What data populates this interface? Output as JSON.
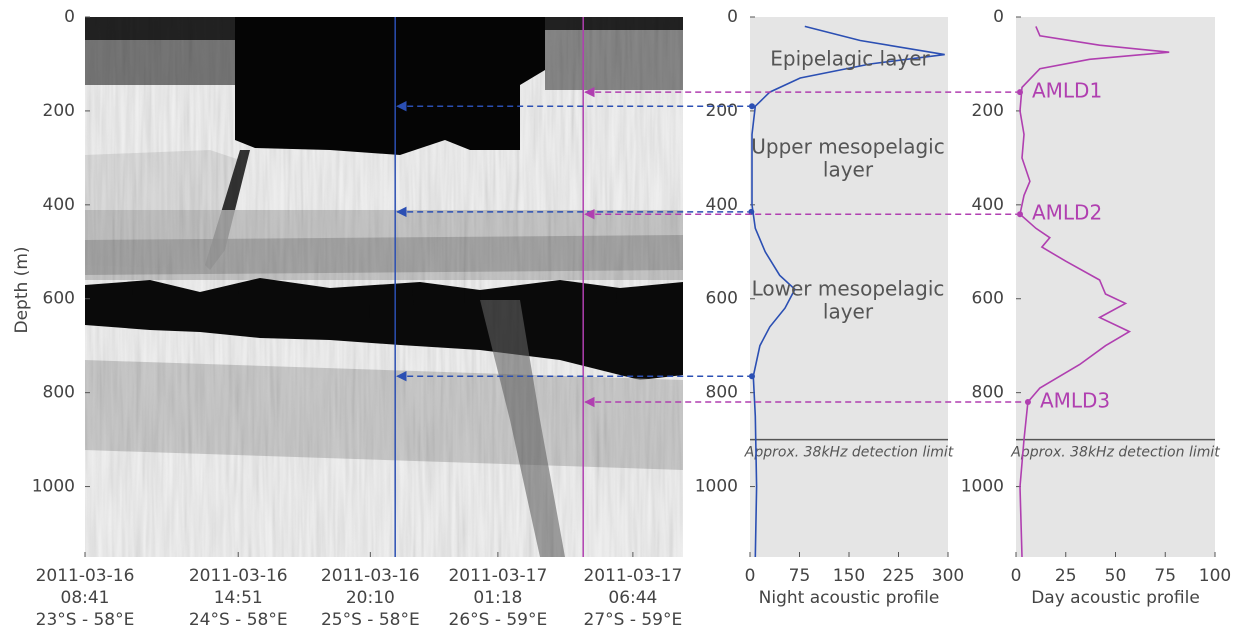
{
  "chart_data": [
    {
      "type": "echogram",
      "ylabel": "Depth (m)",
      "ylim": [
        0,
        1150
      ],
      "yticks": [
        0,
        200,
        400,
        600,
        800,
        1000
      ],
      "xlim": [
        "2011-03-16 08:41",
        "2011-03-17 08:45"
      ],
      "xticks": [
        {
          "date": "2011-03-16",
          "time": "08:41",
          "position": "23°S - 58°E"
        },
        {
          "date": "2011-03-16",
          "time": "14:51",
          "position": "24°S - 58°E"
        },
        {
          "date": "2011-03-16",
          "time": "20:10",
          "position": "25°S - 58°E"
        },
        {
          "date": "2011-03-17",
          "time": "01:18",
          "position": "26°S - 59°E"
        },
        {
          "date": "2011-03-17",
          "time": "06:44",
          "position": "27°S - 59°E"
        }
      ],
      "night_profile_time": "2011-03-16 21:10",
      "day_profile_time": "2011-03-17 04:44",
      "night_color": "#2b4fb3",
      "day_color": "#b03fb0"
    },
    {
      "type": "profile",
      "xlabel": "Night acoustic profile",
      "xlim": [
        0,
        300
      ],
      "xticks": [
        0,
        75,
        150,
        225,
        300
      ],
      "ylim": [
        0,
        1150
      ],
      "yticks": [
        0,
        200,
        400,
        600,
        800,
        1000
      ],
      "color": "#2b4fb3",
      "depth": [
        20,
        50,
        80,
        100,
        130,
        160,
        190,
        250,
        400,
        450,
        500,
        550,
        580,
        620,
        660,
        700,
        765,
        850,
        1000,
        1150
      ],
      "values": [
        83,
        167,
        295,
        182,
        76,
        30,
        8,
        3,
        3,
        8,
        23,
        45,
        68,
        53,
        30,
        15,
        5,
        8,
        10,
        8
      ],
      "annotations": [
        [
          "Epipelagic layer"
        ],
        [
          "Upper mesopelagic",
          "layer"
        ],
        [
          "Lower mesopelagic",
          "layer"
        ]
      ],
      "detection_limit": 900,
      "detection_label": "Approx. 38kHz detection limit",
      "markers": [
        {
          "depth": 190,
          "value": 3
        },
        {
          "depth": 415,
          "value": 2
        },
        {
          "depth": 765,
          "value": 3
        }
      ]
    },
    {
      "type": "profile",
      "xlabel": "Day acoustic profile",
      "xlim": [
        0,
        100
      ],
      "xticks": [
        0,
        25,
        50,
        75,
        100
      ],
      "ylim": [
        0,
        1150
      ],
      "yticks": [
        0,
        200,
        400,
        600,
        800,
        1000
      ],
      "color": "#b03fb0",
      "depth": [
        20,
        40,
        60,
        75,
        90,
        110,
        150,
        200,
        250,
        300,
        350,
        380,
        420,
        450,
        470,
        490,
        520,
        560,
        590,
        610,
        640,
        670,
        700,
        740,
        790,
        820,
        900,
        1000,
        1150
      ],
      "values": [
        10,
        12,
        42,
        77,
        37,
        12,
        3,
        2,
        4,
        3,
        7,
        4,
        2,
        10,
        17,
        13,
        25,
        42,
        45,
        55,
        42,
        57,
        45,
        32,
        12,
        6,
        4,
        2,
        3
      ],
      "detection_limit": 900,
      "detection_label": "Approx. 38kHz detection limit",
      "markers": [
        {
          "label": "AMLD1",
          "depth": 160,
          "value": 2
        },
        {
          "label": "AMLD2",
          "depth": 420,
          "value": 2
        },
        {
          "label": "AMLD3",
          "depth": 820,
          "value": 6
        }
      ]
    }
  ]
}
